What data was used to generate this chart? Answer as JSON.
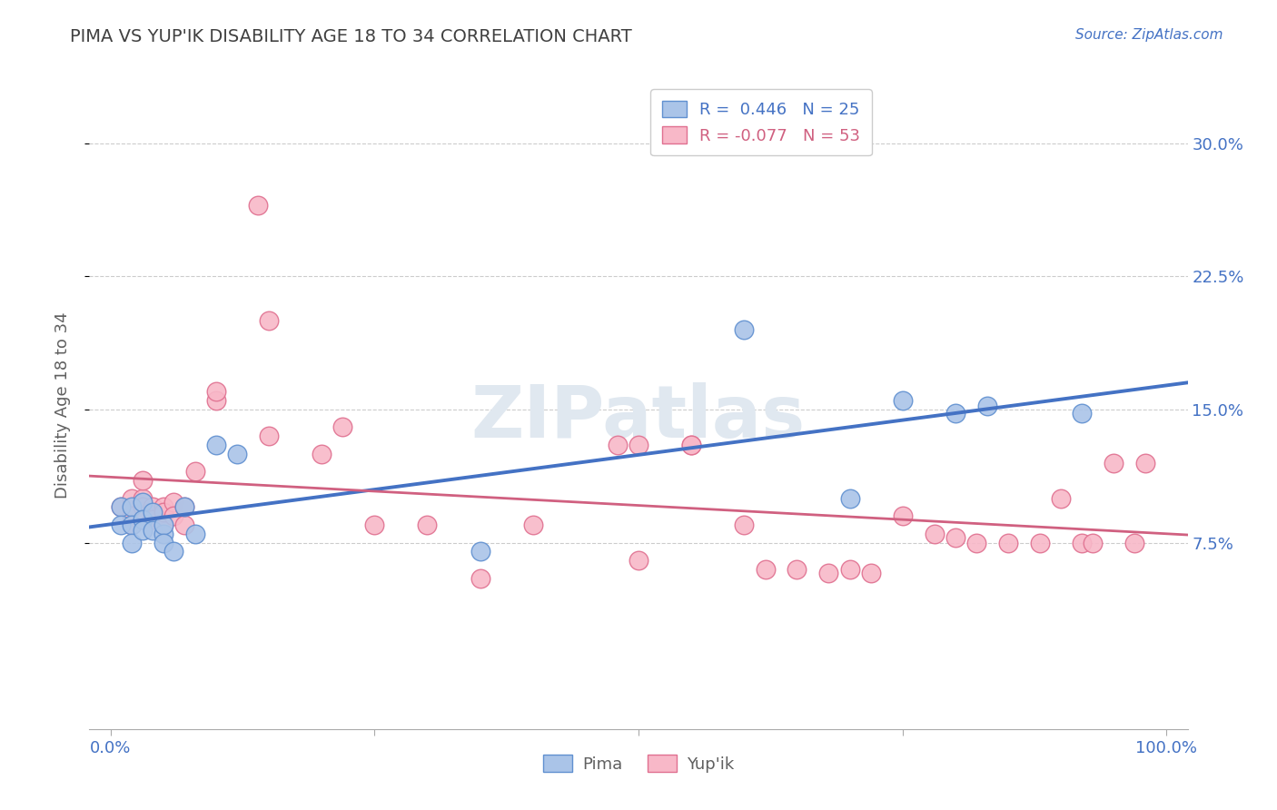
{
  "title": "PIMA VS YUP'IK DISABILITY AGE 18 TO 34 CORRELATION CHART",
  "source": "Source: ZipAtlas.com",
  "ylabel": "Disability Age 18 to 34",
  "xlim": [
    -0.02,
    1.02
  ],
  "ylim": [
    -0.03,
    0.335
  ],
  "yticks": [
    0.075,
    0.15,
    0.225,
    0.3
  ],
  "ytick_labels": [
    "7.5%",
    "15.0%",
    "22.5%",
    "30.0%"
  ],
  "xticks": [
    0.0,
    0.25,
    0.5,
    0.75,
    1.0
  ],
  "xtick_labels": [
    "0.0%",
    "",
    "",
    "",
    "100.0%"
  ],
  "grid_color": "#cccccc",
  "background_color": "#ffffff",
  "pima_color": "#aac4e8",
  "yupik_color": "#f8b8c8",
  "pima_edge_color": "#6090d0",
  "yupik_edge_color": "#e07090",
  "pima_line_color": "#4472c4",
  "yupik_line_color": "#d06080",
  "pima_R": 0.446,
  "pima_N": 25,
  "yupik_R": -0.077,
  "yupik_N": 53,
  "pima_scatter_x": [
    0.01,
    0.01,
    0.02,
    0.02,
    0.02,
    0.03,
    0.03,
    0.03,
    0.04,
    0.04,
    0.05,
    0.05,
    0.05,
    0.06,
    0.07,
    0.08,
    0.1,
    0.12,
    0.35,
    0.6,
    0.7,
    0.75,
    0.8,
    0.83,
    0.92
  ],
  "pima_scatter_y": [
    0.095,
    0.085,
    0.095,
    0.085,
    0.075,
    0.098,
    0.088,
    0.082,
    0.092,
    0.082,
    0.08,
    0.085,
    0.075,
    0.07,
    0.095,
    0.08,
    0.13,
    0.125,
    0.07,
    0.195,
    0.1,
    0.155,
    0.148,
    0.152,
    0.148
  ],
  "yupik_scatter_x": [
    0.01,
    0.02,
    0.02,
    0.02,
    0.03,
    0.03,
    0.03,
    0.03,
    0.04,
    0.04,
    0.04,
    0.05,
    0.05,
    0.05,
    0.06,
    0.06,
    0.07,
    0.07,
    0.08,
    0.1,
    0.1,
    0.14,
    0.15,
    0.15,
    0.2,
    0.22,
    0.25,
    0.3,
    0.35,
    0.4,
    0.48,
    0.5,
    0.5,
    0.55,
    0.55,
    0.6,
    0.62,
    0.65,
    0.68,
    0.7,
    0.72,
    0.75,
    0.78,
    0.8,
    0.82,
    0.85,
    0.88,
    0.9,
    0.92,
    0.93,
    0.95,
    0.97,
    0.98
  ],
  "yupik_scatter_y": [
    0.095,
    0.1,
    0.09,
    0.085,
    0.1,
    0.095,
    0.088,
    0.11,
    0.09,
    0.095,
    0.088,
    0.095,
    0.085,
    0.092,
    0.098,
    0.09,
    0.085,
    0.095,
    0.115,
    0.155,
    0.16,
    0.265,
    0.2,
    0.135,
    0.125,
    0.14,
    0.085,
    0.085,
    0.055,
    0.085,
    0.13,
    0.13,
    0.065,
    0.13,
    0.13,
    0.085,
    0.06,
    0.06,
    0.058,
    0.06,
    0.058,
    0.09,
    0.08,
    0.078,
    0.075,
    0.075,
    0.075,
    0.1,
    0.075,
    0.075,
    0.12,
    0.075,
    0.12
  ],
  "watermark_text": "ZIPatlas",
  "watermark_color": "#e0e8f0",
  "title_color": "#404040",
  "axis_label_color": "#606060",
  "tick_color": "#4472c4",
  "source_color": "#4472c4",
  "legend_colors": [
    "#4472c4",
    "#d06080"
  ]
}
